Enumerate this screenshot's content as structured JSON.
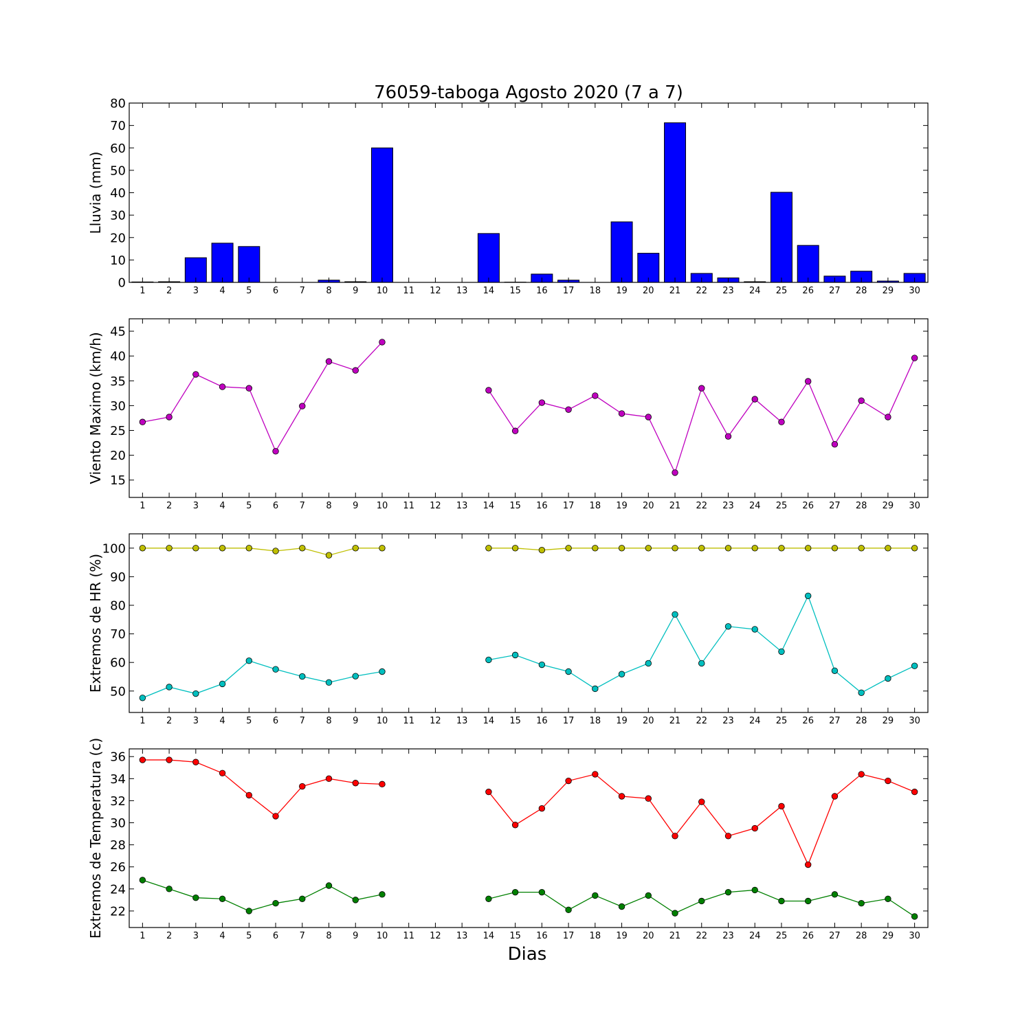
{
  "chart_data": [
    {
      "type": "bar",
      "title": "76059-taboga Agosto 2020  (7 a 7)",
      "ylabel": "Lluvia (mm)",
      "xlabel": "",
      "x": [
        1,
        2,
        3,
        4,
        5,
        6,
        7,
        8,
        9,
        10,
        11,
        12,
        13,
        14,
        15,
        16,
        17,
        18,
        19,
        20,
        21,
        22,
        23,
        24,
        25,
        26,
        27,
        28,
        29,
        30
      ],
      "ylim": [
        0,
        80
      ],
      "yticks": [
        0,
        10,
        20,
        30,
        40,
        50,
        60,
        70,
        80
      ],
      "color": "#0000ff",
      "values": [
        0.2,
        0.3,
        11,
        17.5,
        16,
        0,
        0,
        1,
        0.3,
        60,
        0,
        0,
        0,
        21.8,
        0.1,
        3.7,
        1,
        0,
        27,
        13,
        71.2,
        4,
        2,
        0.3,
        40.2,
        16.5,
        2.8,
        5,
        0.6,
        4
      ]
    },
    {
      "type": "line",
      "title": "",
      "ylabel": "Viento Maximo (km/h)",
      "xlabel": "",
      "x": [
        1,
        2,
        3,
        4,
        5,
        6,
        7,
        8,
        9,
        10,
        11,
        12,
        13,
        14,
        15,
        16,
        17,
        18,
        19,
        20,
        21,
        22,
        23,
        24,
        25,
        26,
        27,
        28,
        29,
        30
      ],
      "ylim": [
        11.5,
        47.5
      ],
      "yticks": [
        15,
        20,
        25,
        30,
        35,
        40,
        45
      ],
      "series": [
        {
          "color": "#bf00bf",
          "values": [
            26.7,
            27.7,
            36.3,
            33.8,
            33.5,
            20.8,
            29.9,
            38.9,
            37.1,
            42.8,
            null,
            null,
            null,
            33.1,
            24.9,
            30.6,
            29.2,
            32,
            28.4,
            27.7,
            16.5,
            33.5,
            23.8,
            31.3,
            26.7,
            34.9,
            22.2,
            31,
            27.7,
            39.6
          ]
        }
      ]
    },
    {
      "type": "line",
      "title": "",
      "ylabel": "Extremos de HR (%)",
      "xlabel": "",
      "x": [
        1,
        2,
        3,
        4,
        5,
        6,
        7,
        8,
        9,
        10,
        11,
        12,
        13,
        14,
        15,
        16,
        17,
        18,
        19,
        20,
        21,
        22,
        23,
        24,
        25,
        26,
        27,
        28,
        29,
        30
      ],
      "ylim": [
        42.5,
        105
      ],
      "yticks": [
        50,
        60,
        70,
        80,
        90,
        100
      ],
      "series": [
        {
          "color": "#bfbf00",
          "values": [
            100,
            100,
            100,
            100,
            100,
            99,
            100,
            97.5,
            100,
            100,
            null,
            null,
            null,
            100,
            100,
            99.3,
            100,
            100,
            100,
            100,
            100,
            100,
            100,
            100,
            100,
            100,
            100,
            100,
            100,
            100
          ]
        },
        {
          "color": "#00bfbf",
          "values": [
            47.6,
            51.4,
            49.1,
            52.5,
            60.6,
            57.6,
            55.1,
            53,
            55.2,
            56.8,
            null,
            null,
            null,
            60.9,
            62.6,
            59.2,
            56.8,
            50.8,
            55.9,
            59.7,
            76.8,
            59.7,
            72.6,
            71.6,
            63.8,
            83.3,
            57.1,
            49.4,
            54.4,
            58.8
          ]
        }
      ]
    },
    {
      "type": "line",
      "title": "",
      "ylabel": "Extremos de Temperatura (c)",
      "xlabel": "Dias",
      "x": [
        1,
        2,
        3,
        4,
        5,
        6,
        7,
        8,
        9,
        10,
        11,
        12,
        13,
        14,
        15,
        16,
        17,
        18,
        19,
        20,
        21,
        22,
        23,
        24,
        25,
        26,
        27,
        28,
        29,
        30
      ],
      "ylim": [
        20.5,
        36.7
      ],
      "yticks": [
        22,
        24,
        26,
        28,
        30,
        32,
        34,
        36
      ],
      "series": [
        {
          "color": "#ff0000",
          "values": [
            35.7,
            35.7,
            35.5,
            34.5,
            32.5,
            30.6,
            33.3,
            34,
            33.6,
            33.5,
            null,
            null,
            null,
            32.8,
            29.8,
            31.3,
            33.8,
            34.4,
            32.4,
            32.2,
            28.8,
            31.9,
            28.8,
            29.5,
            31.5,
            26.2,
            32.4,
            34.4,
            33.8,
            32.8
          ]
        },
        {
          "color": "#008000",
          "values": [
            24.8,
            24,
            23.2,
            23.1,
            22,
            22.7,
            23.1,
            24.3,
            23,
            23.5,
            null,
            null,
            null,
            23.1,
            23.7,
            23.7,
            22.1,
            23.4,
            22.4,
            23.4,
            21.8,
            22.9,
            23.7,
            23.9,
            22.9,
            22.9,
            23.5,
            22.7,
            23.1,
            21.5
          ]
        }
      ]
    }
  ]
}
